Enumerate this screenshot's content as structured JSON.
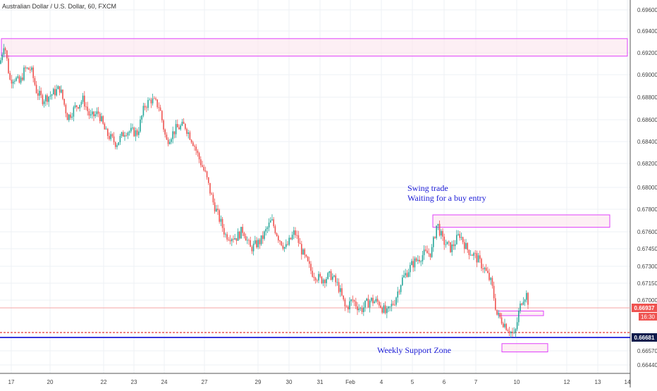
{
  "header": {
    "title": "Australian Dollar / U.S. Dollar, 60, FXCM"
  },
  "colors": {
    "up": "#26a69a",
    "down": "#ef5350",
    "zone_fill": "#fce4ec",
    "zone_stroke": "#e040fb",
    "grid": "#eef0f4",
    "support": "#1a1ad6",
    "annotation": "#1a1ad6",
    "price_tag": "#ef5350",
    "support_tag": "#0d1b4c"
  },
  "annotations": {
    "swing_line1": "Swing trade",
    "swing_line2": "Waiting for a buy entry",
    "support_label": "Weekly Support Zone"
  },
  "price_tags": {
    "last_price": "0.66937",
    "countdown": "16:30",
    "support_price": "0.66681"
  },
  "chart_data": {
    "type": "candlestick",
    "title": "Australian Dollar / U.S. Dollar, 60, FXCM",
    "y_axis_ticks": [
      "0.69600",
      "0.69400",
      "0.69200",
      "0.69000",
      "0.68800",
      "0.68600",
      "0.68400",
      "0.68200",
      "0.68000",
      "0.67800",
      "0.67600",
      "0.67450",
      "0.67300",
      "0.67150",
      "0.67000",
      "0.66937",
      "0.66681",
      "0.66570",
      "0.66440"
    ],
    "x_axis_ticks": [
      "17",
      "20",
      "22",
      "23",
      "24",
      "27",
      "29",
      "30",
      "31",
      "Feb",
      "4",
      "5",
      "6",
      "7",
      "10",
      "12",
      "13",
      "14"
    ],
    "ylim": [
      0.6635,
      0.6975
    ],
    "grid": true,
    "current_price": 0.66937,
    "support_line": 0.66681,
    "zones": [
      {
        "label": "",
        "price_low": 0.6917,
        "price_high": 0.6933
      },
      {
        "label": "",
        "price_low": 0.6764,
        "price_high": 0.6775
      },
      {
        "label": "",
        "price_low": 0.6687,
        "price_high": 0.6691
      },
      {
        "label": "",
        "price_low": 0.6656,
        "price_high": 0.6663
      }
    ],
    "price_path": [
      [
        0,
        0.691
      ],
      [
        6,
        0.693
      ],
      [
        14,
        0.6895
      ],
      [
        20,
        0.6898
      ],
      [
        28,
        0.6892
      ],
      [
        35,
        0.6905
      ],
      [
        44,
        0.6905
      ],
      [
        52,
        0.6885
      ],
      [
        60,
        0.6878
      ],
      [
        72,
        0.6882
      ],
      [
        85,
        0.6888
      ],
      [
        96,
        0.6862
      ],
      [
        108,
        0.6872
      ],
      [
        118,
        0.6878
      ],
      [
        128,
        0.6862
      ],
      [
        140,
        0.6866
      ],
      [
        150,
        0.6848
      ],
      [
        165,
        0.6838
      ],
      [
        178,
        0.685
      ],
      [
        195,
        0.6848
      ],
      [
        205,
        0.6872
      ],
      [
        214,
        0.6878
      ],
      [
        226,
        0.6872
      ],
      [
        236,
        0.684
      ],
      [
        250,
        0.6852
      ],
      [
        262,
        0.6855
      ],
      [
        275,
        0.6838
      ],
      [
        282,
        0.6825
      ],
      [
        292,
        0.681
      ],
      [
        303,
        0.6785
      ],
      [
        312,
        0.677
      ],
      [
        320,
        0.6757
      ],
      [
        335,
        0.6755
      ],
      [
        345,
        0.6762
      ],
      [
        355,
        0.6745
      ],
      [
        370,
        0.6752
      ],
      [
        385,
        0.677
      ],
      [
        395,
        0.6755
      ],
      [
        405,
        0.6745
      ],
      [
        418,
        0.676
      ],
      [
        430,
        0.674
      ],
      [
        442,
        0.6725
      ],
      [
        455,
        0.6718
      ],
      [
        470,
        0.6722
      ],
      [
        480,
        0.6712
      ],
      [
        490,
        0.6693
      ],
      [
        500,
        0.67
      ],
      [
        512,
        0.6692
      ],
      [
        525,
        0.67
      ],
      [
        538,
        0.6698
      ],
      [
        548,
        0.6688
      ],
      [
        560,
        0.67
      ],
      [
        570,
        0.6718
      ],
      [
        585,
        0.6732
      ],
      [
        600,
        0.674
      ],
      [
        612,
        0.6742
      ],
      [
        620,
        0.6768
      ],
      [
        628,
        0.6752
      ],
      [
        640,
        0.6745
      ],
      [
        652,
        0.6758
      ],
      [
        662,
        0.6745
      ],
      [
        675,
        0.6738
      ],
      [
        687,
        0.6728
      ],
      [
        697,
        0.6715
      ],
      [
        705,
        0.6688
      ],
      [
        713,
        0.6682
      ],
      [
        722,
        0.6675
      ],
      [
        730,
        0.6669
      ],
      [
        736,
        0.669
      ],
      [
        741,
        0.6702
      ],
      [
        747,
        0.6705
      ],
      [
        751,
        0.6694
      ]
    ]
  }
}
